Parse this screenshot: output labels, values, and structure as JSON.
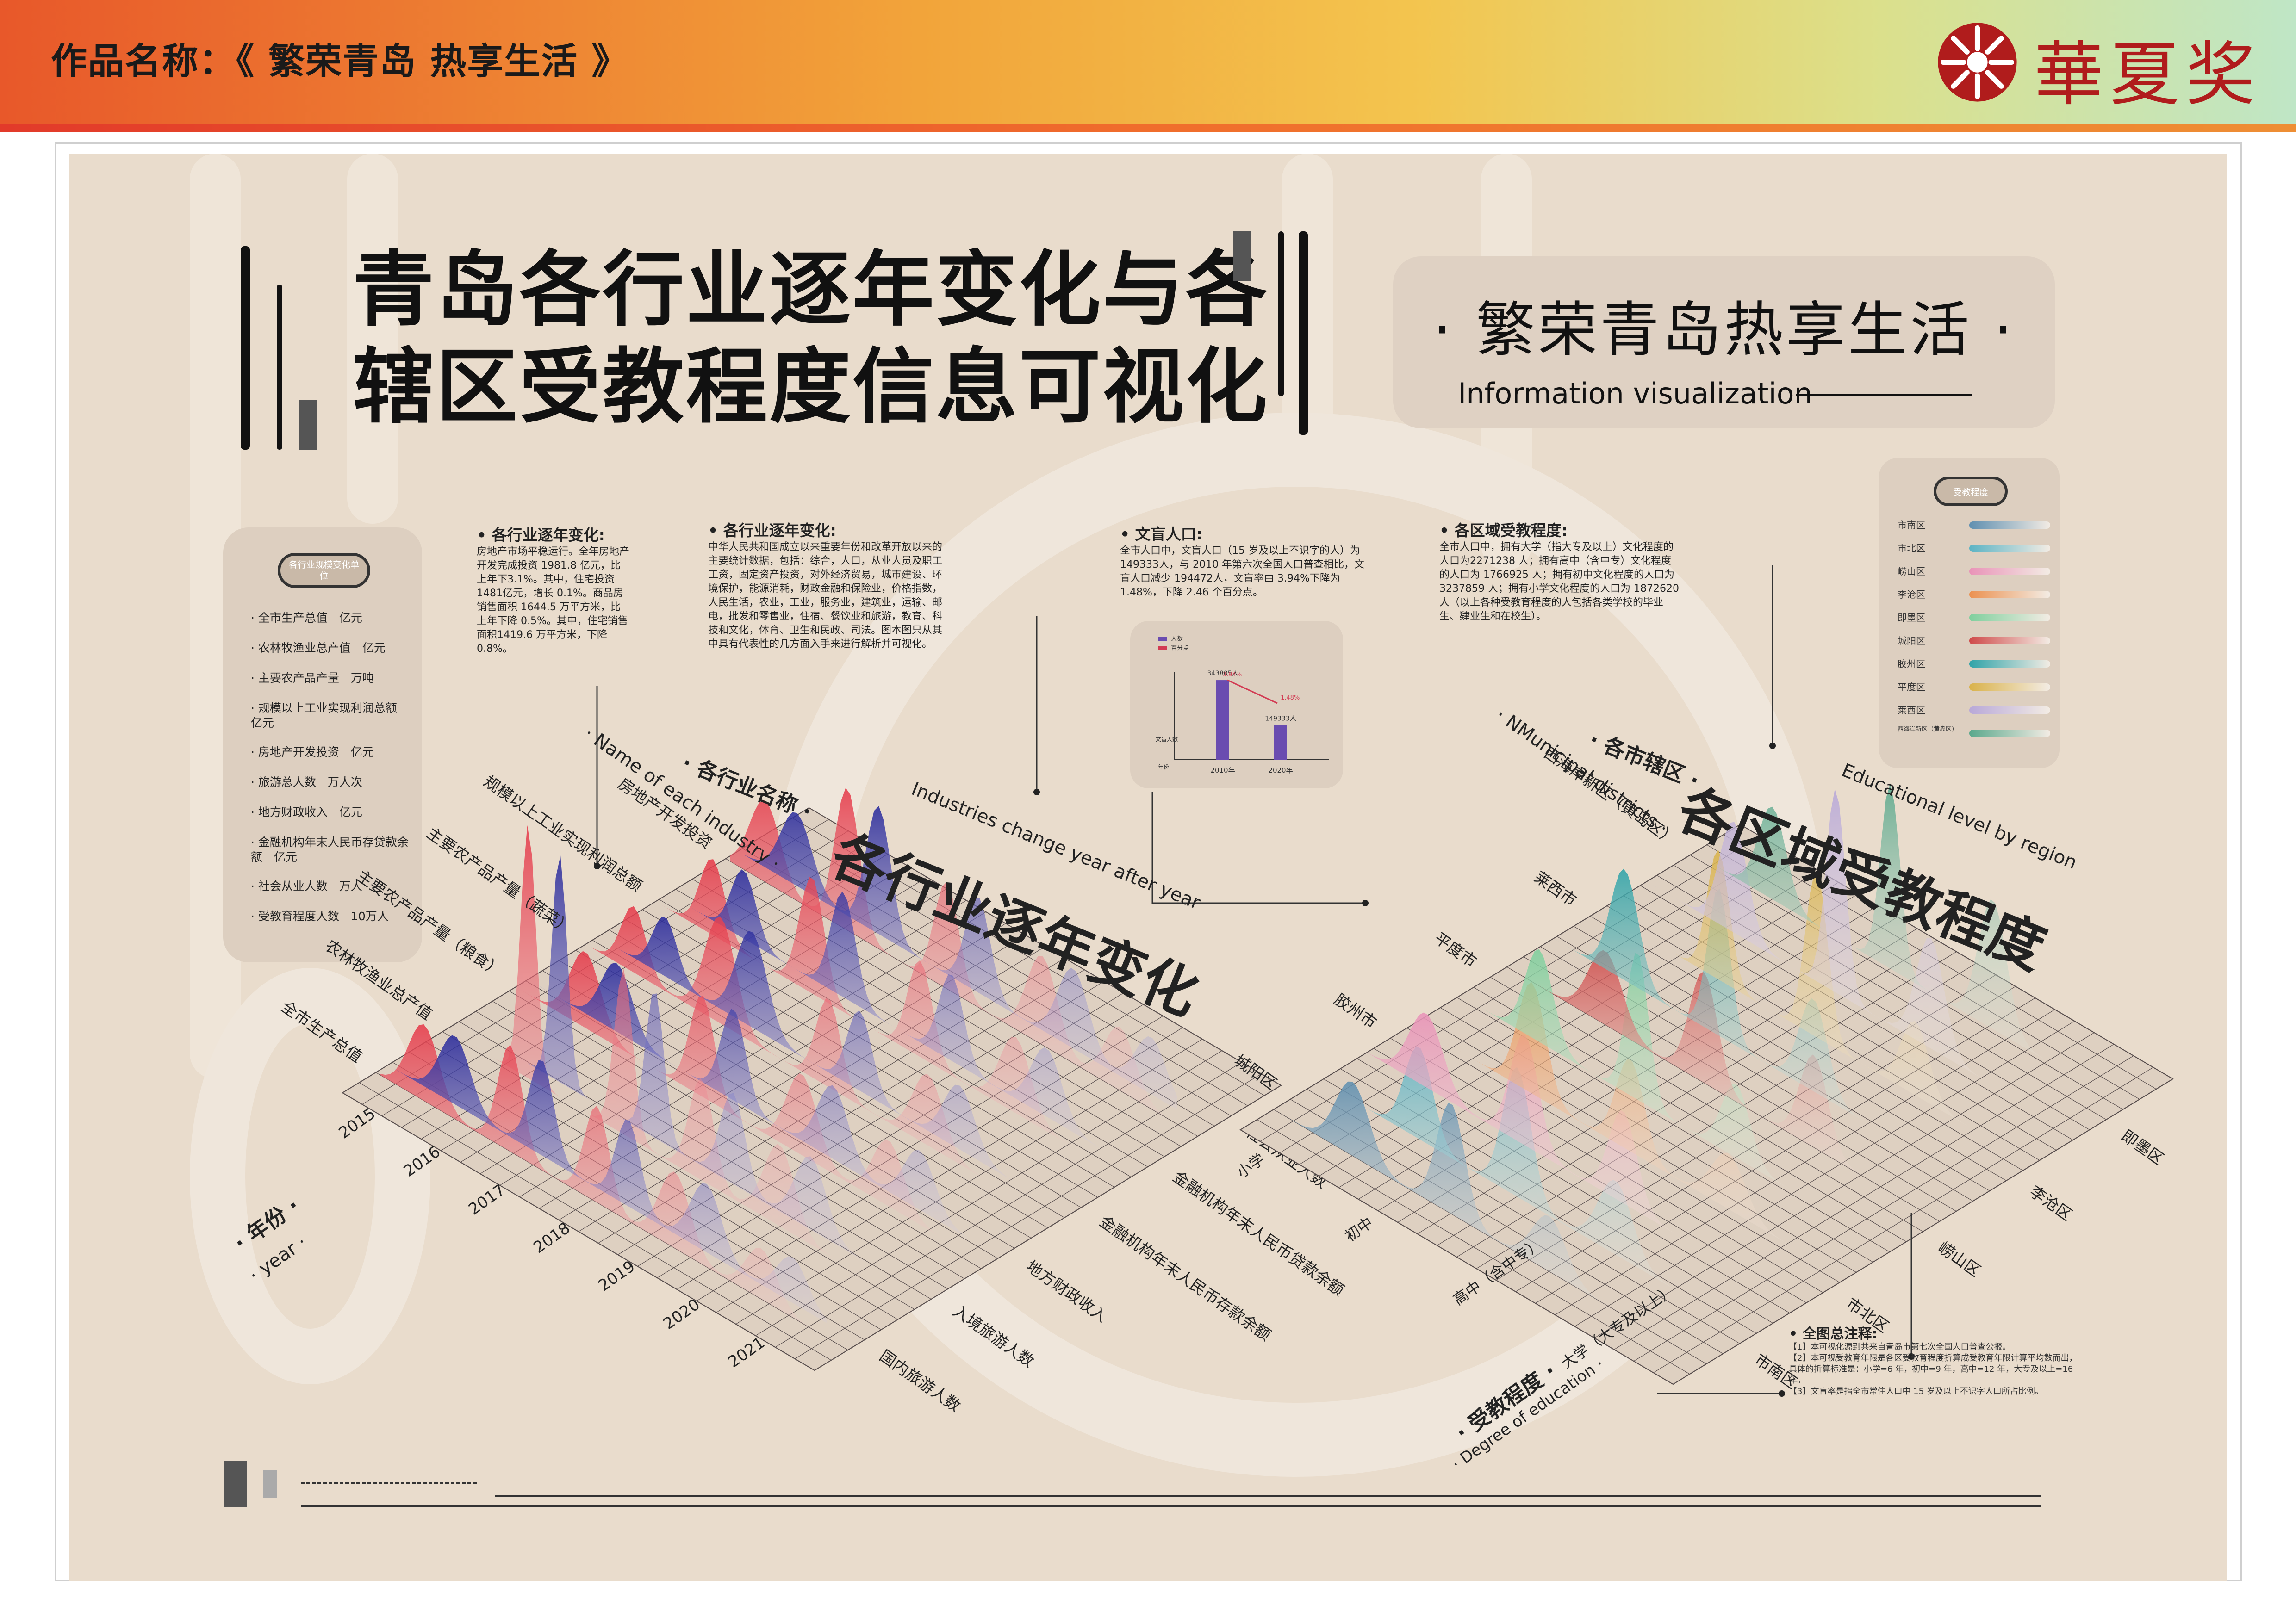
{
  "header": {
    "work_title": "作品名称：《 繁荣青岛 热享生活 》",
    "logo_text": "華夏奖",
    "accent_color": "#b01c1c"
  },
  "poster": {
    "title_line1": "青岛各行业逐年变化与各",
    "title_line2": "辖区受教程度信息可视化",
    "subtitle": "· 繁荣青岛热享生活 ·",
    "subtitle_en": "Information visualization"
  },
  "industry_legend": {
    "pill": "各行业规模变化单位",
    "items": [
      "全市生产总值　亿元",
      "农林牧渔业总产值　亿元",
      "主要农产品产量　万吨",
      "规模以上工业实现利润总额　亿元",
      "房地产开发投资　亿元",
      "旅游总人数　万人次",
      "地方财政收入　亿元",
      "金融机构年末人民币存贷款余额　亿元",
      "社会从业人数　万人",
      "受教育程度人数　10万人"
    ]
  },
  "info_blocks": {
    "block1": {
      "title": "各行业逐年变化:",
      "text": "房地产市场平稳运行。全年房地产开发完成投资 1981.8 亿元，比上年下3.1%。其中，住宅投资1481亿元，增长 0.1%。商品房销售面积 1644.5 万平方米，比上年下降 0.5%。其中，住宅销售面积1419.6 万平方米，下降 0.8%。"
    },
    "block2": {
      "title": "各行业逐年变化:",
      "text": "中华人民共和国成立以来重要年份和改革开放以来的主要统计数据，包括：综合，人口，从业人员及职工工资，固定资产投资，对外经济贸易，城市建设、环境保护，能源消耗，财政金融和保险业，价格指数，人民生活，农业，工业，服务业，建筑业，运输、邮电，批发和零售业，住宿、餐饮业和旅游，教育、科技和文化，体育、卫生和民政、司法。图本图只从其中具有代表性的几方面入手来进行解析并可视化。"
    },
    "block3": {
      "title": "文盲人口:",
      "text": "全市人口中，文盲人口（15 岁及以上不识字的人）为 149333人，与 2010 年第六次全国人口普查相比，文盲人口减少 194472人，文盲率由 3.94%下降为 1.48%，下降 2.46 个百分点。"
    },
    "block4": {
      "title": "各区域受教程度:",
      "text": "全市人口中，拥有大学（指大专及以上）文化程度的人口为2271238 人；拥有高中（含中专）文化程度的人口为 1766925 人；拥有初中文化程度的人口为 3237859 人；拥有小学文化程度的人口为 1872620 人（以上各种受教育程度的人包括各类学校的毕业生、肄业生和在校生）。"
    }
  },
  "region_legend": {
    "pill": "受教程度",
    "items": [
      {
        "name": "市南区",
        "color": "#5f8fb0"
      },
      {
        "name": "市北区",
        "color": "#5bb3c4"
      },
      {
        "name": "崂山区",
        "color": "#e993b8"
      },
      {
        "name": "李沧区",
        "color": "#eb9150"
      },
      {
        "name": "即墨区",
        "color": "#7fcf9d"
      },
      {
        "name": "城阳区",
        "color": "#cf4a4a"
      },
      {
        "name": "胶州区",
        "color": "#2fa3a8"
      },
      {
        "name": "平度区",
        "color": "#d9b24a"
      },
      {
        "name": "莱西区",
        "color": "#b8a8d8"
      },
      {
        "name": "西海岸新区（黄岛区）",
        "color": "#5aa88c"
      }
    ]
  },
  "chart_labels": {
    "left_title": "各行业逐年变化",
    "left_sub": "Industries change year after year",
    "left_axis_name": "· 各行业名称 ·",
    "left_axis_en": "· Name of each industry ·",
    "year_axis": "· 年份 ·",
    "year_axis_en": "· year ·",
    "right_title": "各区域受教程度",
    "right_sub": "Educational level by region",
    "right_axis_name": "· 各市辖区 ·",
    "right_axis_en": "· NMunicipal districts ·",
    "edu_axis": "· 受教程度 ·",
    "edu_axis_en": "· Degree of education ·",
    "left_rows": [
      "房地产开发投资",
      "规模以上工业实现利润总额",
      "主要农产品产量（蔬菜）",
      "主要农产品产量（粮食）",
      "农林牧渔业总产值",
      "全市生产总值"
    ],
    "left_cols": [
      "社会从业人数",
      "金融机构年末人民币贷款余额",
      "金融机构年末人民币存款余额",
      "地方财政收入",
      "入境旅游人数",
      "国内旅游人数"
    ],
    "right_rows": [
      "西海岸新区（黄岛区）",
      "莱西市",
      "平度市",
      "胶州市",
      "城阳区"
    ],
    "right_cols": [
      "即墨区",
      "李沧区",
      "崂山区",
      "市北区",
      "市南区"
    ],
    "edu_cols": [
      "小学",
      "初中",
      "高中（含中专）",
      "大学（大专及以上）"
    ]
  },
  "chart_data": [
    {
      "type": "area",
      "title": "各行业逐年变化",
      "x": [
        "2015",
        "2016",
        "2017",
        "2018",
        "2019",
        "2020",
        "2021"
      ],
      "series": [
        {
          "name": "全市生产总值",
          "values": [
            2.5,
            3.5,
            4,
            3.2,
            5,
            3,
            4
          ]
        },
        {
          "name": "农林牧渔业总产值",
          "values": [
            3,
            4,
            3.5,
            5,
            4,
            4.5,
            3
          ]
        },
        {
          "name": "主要农产品产量（粮食）",
          "values": [
            4,
            3,
            5,
            4,
            3.5,
            5,
            4
          ]
        },
        {
          "name": "主要农产品产量（蔬菜）",
          "values": [
            3.5,
            5,
            4,
            4.5,
            5.5,
            4,
            3
          ]
        },
        {
          "name": "规模以上工业实现利润总额",
          "values": [
            5,
            8,
            11,
            6,
            9,
            7,
            5
          ]
        },
        {
          "name": "房地产开发投资",
          "values": [
            4,
            5,
            3,
            5,
            4,
            3,
            2
          ]
        }
      ]
    },
    {
      "type": "bar",
      "categories": [
        "2010年",
        "2020年"
      ],
      "values": [
        343805,
        149333
      ],
      "data_labels": [
        "343805人",
        "149333人"
      ],
      "legend": [
        "人数",
        "百分点"
      ],
      "rate": {
        "2010": "3.94%",
        "2020": "1.48%"
      },
      "ylabel": "文盲人数",
      "xlabel": "年份"
    },
    {
      "type": "area",
      "title": "各区域受教程度",
      "x": [
        "小学",
        "初中",
        "高中（含中专）",
        "大学（大专及以上）"
      ],
      "series": [
        {
          "name": "市南区",
          "values": [
            2,
            3,
            4,
            5
          ]
        },
        {
          "name": "市北区",
          "values": [
            3,
            4,
            3.5,
            3
          ]
        },
        {
          "name": "崂山区",
          "values": [
            2,
            3,
            3.5,
            4
          ]
        },
        {
          "name": "李沧区",
          "values": [
            3,
            4,
            3,
            2.5
          ]
        },
        {
          "name": "即墨区",
          "values": [
            4,
            5,
            3,
            2
          ]
        },
        {
          "name": "城阳区",
          "values": [
            3,
            4,
            3,
            3
          ]
        },
        {
          "name": "胶州区",
          "values": [
            4,
            5,
            3,
            2
          ]
        },
        {
          "name": "平度区",
          "values": [
            5,
            6,
            3,
            1.5
          ]
        },
        {
          "name": "莱西区",
          "values": [
            4,
            5,
            2.5,
            1.5
          ]
        },
        {
          "name": "西海岸新区（黄岛区）",
          "values": [
            5,
            6,
            4,
            5
          ]
        }
      ]
    }
  ],
  "notes": {
    "title": "全图总注释:",
    "lines": [
      "【1】本可视化源到共来自青岛市第七次全国人口普查公报。",
      "【2】本可视受教育年限是各区受教育程度折算成受教育年限计算平均数而出，具体的折算标准是：小学=6 年，初中=9 年，高中=12 年，大专及以上=16 年。",
      "【3】文盲率是指全市常住人口中 15 岁及以上不识字人口所占比例。"
    ]
  }
}
